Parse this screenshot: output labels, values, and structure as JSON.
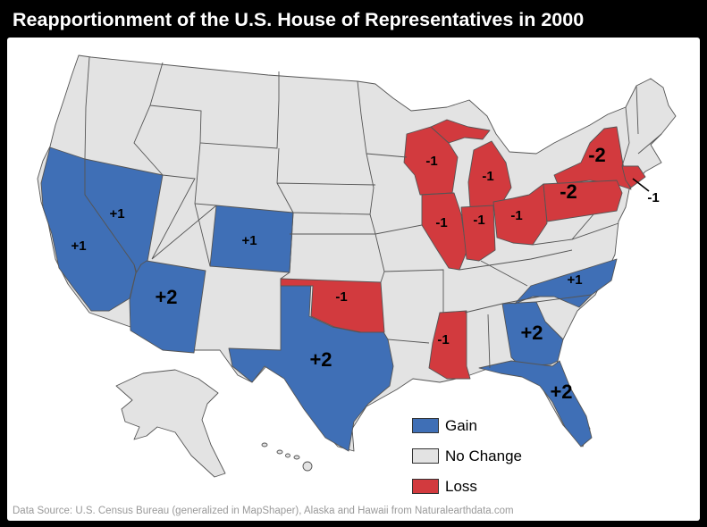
{
  "title": "Reapportionment of the U.S. House of Representatives in 2000",
  "colors": {
    "gain": "#3f6fb6",
    "no_change": "#e3e3e3",
    "loss": "#d23a3e",
    "background": "#000000",
    "panel": "#ffffff"
  },
  "legend": {
    "gain": "Gain",
    "no_change": "No Change",
    "loss": "Loss"
  },
  "states": [
    {
      "state": "California",
      "change": "+1"
    },
    {
      "state": "Nevada",
      "change": "+1"
    },
    {
      "state": "Arizona",
      "change": "+2"
    },
    {
      "state": "Colorado",
      "change": "+1"
    },
    {
      "state": "Texas",
      "change": "+2"
    },
    {
      "state": "Georgia",
      "change": "+2"
    },
    {
      "state": "Florida",
      "change": "+2"
    },
    {
      "state": "North Carolina",
      "change": "+1"
    },
    {
      "state": "Oklahoma",
      "change": "-1"
    },
    {
      "state": "Wisconsin",
      "change": "-1"
    },
    {
      "state": "Michigan",
      "change": "-1"
    },
    {
      "state": "Illinois",
      "change": "-1"
    },
    {
      "state": "Indiana",
      "change": "-1"
    },
    {
      "state": "Ohio",
      "change": "-1"
    },
    {
      "state": "Mississippi",
      "change": "-1"
    },
    {
      "state": "New York",
      "change": "-2"
    },
    {
      "state": "Pennsylvania",
      "change": "-2"
    },
    {
      "state": "Connecticut",
      "change": "-1"
    }
  ],
  "source": "Data Source: U.S. Census Bureau (generalized in MapShaper), Alaska and Hawaii from Naturalearthdata.com"
}
